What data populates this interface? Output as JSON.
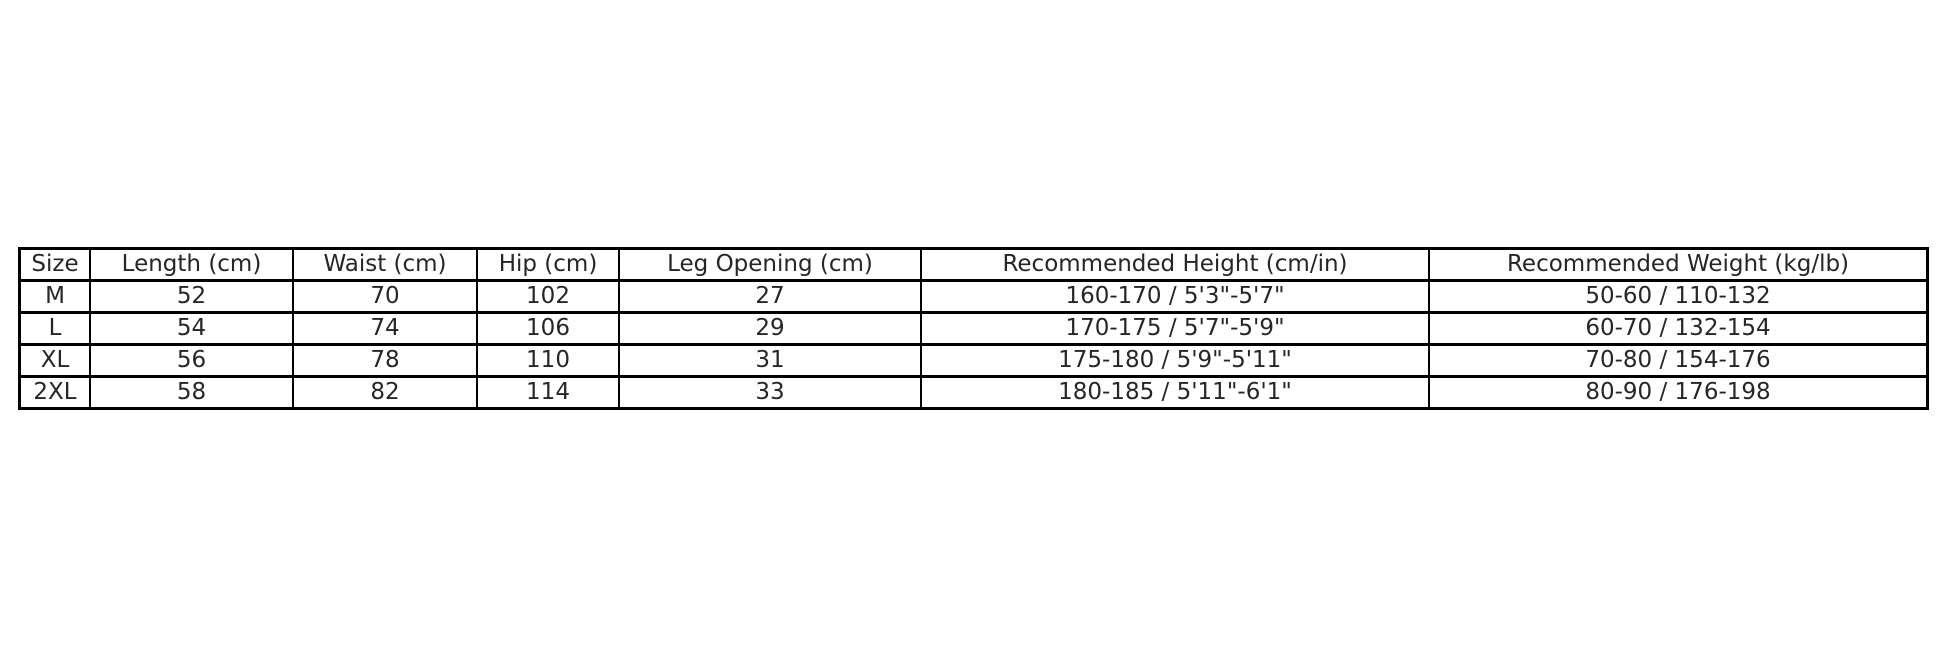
{
  "page": {
    "background": "#ffffff",
    "border_color": "#000000",
    "text_color": "#262626"
  },
  "chart_data": {
    "type": "table",
    "title": "",
    "columns": [
      "Size",
      "Length (cm)",
      "Waist (cm)",
      "Hip (cm)",
      "Leg Opening (cm)",
      "Recommended Height (cm/in)",
      "Recommended Weight (kg/lb)"
    ],
    "rows": [
      [
        "M",
        "52",
        "70",
        "102",
        "27",
        "160-170 / 5'3\"-5'7\"",
        "50-60 / 110-132"
      ],
      [
        "L",
        "54",
        "74",
        "106",
        "29",
        "170-175 / 5'7\"-5'9\"",
        "60-70 / 132-154"
      ],
      [
        "XL",
        "56",
        "78",
        "110",
        "31",
        "175-180 / 5'9\"-5'11\"",
        "70-80 / 154-176"
      ],
      [
        "2XL",
        "58",
        "82",
        "114",
        "33",
        "180-185 / 5'11\"-6'1\"",
        "80-90 / 176-198"
      ]
    ],
    "layout": {
      "grid": true,
      "header_row": true,
      "text_align": "center"
    }
  }
}
